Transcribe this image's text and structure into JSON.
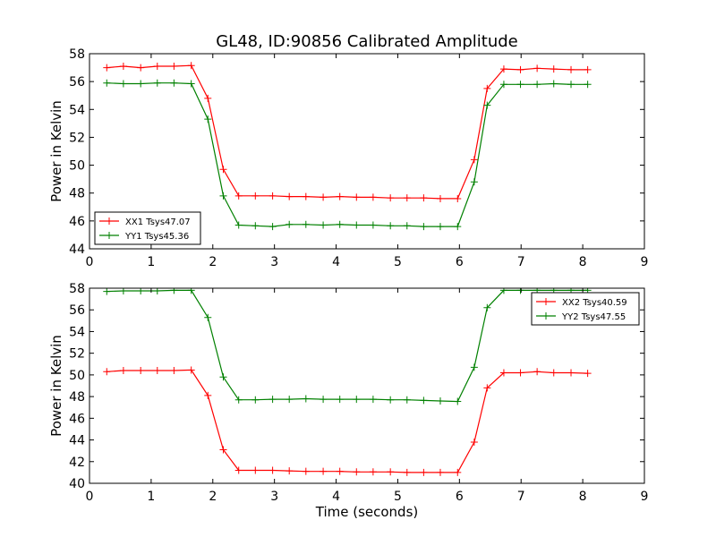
{
  "chart_data": [
    {
      "type": "line",
      "title": "GL48, ID:90856 Calibrated Amplitude",
      "xlabel": "",
      "ylabel": "Power in Kelvin",
      "xlim": [
        0,
        9
      ],
      "ylim": [
        44,
        58
      ],
      "xticks": [
        "0",
        "1",
        "2",
        "3",
        "4",
        "5",
        "6",
        "7",
        "8",
        "9"
      ],
      "yticks": [
        "44",
        "46",
        "48",
        "50",
        "52",
        "54",
        "56",
        "58"
      ],
      "legend": "lower-left",
      "grid": false,
      "x": [
        0.28,
        0.55,
        0.83,
        1.1,
        1.37,
        1.65,
        1.92,
        2.17,
        2.42,
        2.69,
        2.97,
        3.24,
        3.51,
        3.79,
        4.06,
        4.33,
        4.6,
        4.88,
        5.15,
        5.42,
        5.69,
        5.97,
        6.24,
        6.45,
        6.72,
        6.99,
        7.26,
        7.53,
        7.81,
        8.08
      ],
      "series": [
        {
          "name": "XX1 Tsys47.07",
          "color": "#ff0000",
          "values": [
            57.0,
            57.1,
            57.0,
            57.1,
            57.1,
            57.15,
            54.8,
            49.7,
            47.8,
            47.8,
            47.8,
            47.75,
            47.75,
            47.7,
            47.75,
            47.7,
            47.7,
            47.65,
            47.65,
            47.65,
            47.6,
            47.6,
            50.4,
            55.5,
            56.9,
            56.85,
            56.95,
            56.9,
            56.85,
            56.85
          ]
        },
        {
          "name": "YY1 Tsys45.36",
          "color": "#008000",
          "values": [
            55.9,
            55.85,
            55.85,
            55.9,
            55.9,
            55.85,
            53.3,
            47.8,
            45.7,
            45.65,
            45.6,
            45.75,
            45.75,
            45.7,
            45.75,
            45.7,
            45.7,
            45.65,
            45.65,
            45.6,
            45.6,
            45.6,
            48.8,
            54.3,
            55.8,
            55.8,
            55.8,
            55.85,
            55.8,
            55.8
          ]
        }
      ]
    },
    {
      "type": "line",
      "title": "",
      "xlabel": "Time (seconds)",
      "ylabel": "Power in Kelvin",
      "xlim": [
        0,
        9
      ],
      "ylim": [
        40,
        58
      ],
      "xticks": [
        "0",
        "1",
        "2",
        "3",
        "4",
        "5",
        "6",
        "7",
        "8",
        "9"
      ],
      "yticks": [
        "40",
        "42",
        "44",
        "46",
        "48",
        "50",
        "52",
        "54",
        "56",
        "58"
      ],
      "legend": "upper-right",
      "grid": false,
      "x": [
        0.28,
        0.55,
        0.83,
        1.1,
        1.37,
        1.65,
        1.92,
        2.17,
        2.42,
        2.69,
        2.97,
        3.24,
        3.51,
        3.79,
        4.06,
        4.33,
        4.6,
        4.88,
        5.15,
        5.42,
        5.69,
        5.97,
        6.24,
        6.45,
        6.72,
        6.99,
        7.26,
        7.53,
        7.81,
        8.08
      ],
      "series": [
        {
          "name": "XX2 Tsys40.59",
          "color": "#ff0000",
          "values": [
            50.3,
            50.4,
            50.4,
            50.4,
            50.4,
            50.45,
            48.1,
            43.1,
            41.2,
            41.2,
            41.2,
            41.15,
            41.1,
            41.1,
            41.1,
            41.05,
            41.05,
            41.05,
            41.0,
            41.0,
            41.0,
            41.0,
            43.8,
            48.8,
            50.2,
            50.2,
            50.3,
            50.2,
            50.2,
            50.15
          ]
        },
        {
          "name": "YY2 Tsys47.55",
          "color": "#008000",
          "values": [
            57.7,
            57.75,
            57.75,
            57.75,
            57.8,
            57.8,
            55.3,
            49.8,
            47.7,
            47.7,
            47.75,
            47.75,
            47.8,
            47.75,
            47.75,
            47.75,
            47.75,
            47.7,
            47.7,
            47.65,
            47.6,
            47.55,
            50.7,
            56.2,
            57.8,
            57.8,
            57.8,
            57.8,
            57.8,
            57.8
          ]
        }
      ]
    }
  ]
}
